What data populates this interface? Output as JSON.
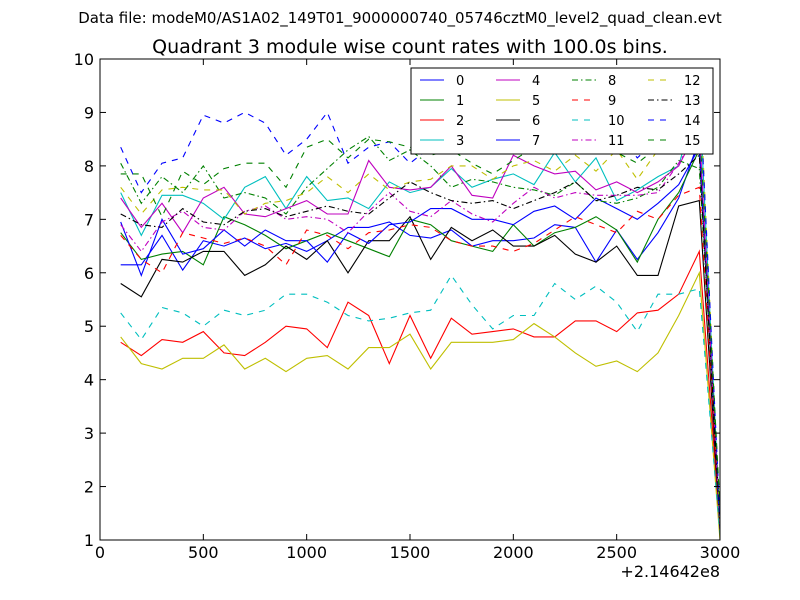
{
  "chart_data": {
    "type": "line",
    "subtitle": "Data file: modeM0/AS1A02_149T01_9000000740_05746cztM0_level2_quad_clean.evt",
    "title": "Quadrant 3 module wise count rates with 100.0s bins.",
    "xlabel": "",
    "ylabel": "",
    "x_offset_label": "+2.14642e8",
    "xlim": [
      0,
      3000
    ],
    "ylim": [
      1,
      10
    ],
    "xticks": [
      "0",
      "500",
      "1000",
      "1500",
      "2000",
      "2500",
      "3000"
    ],
    "yticks": [
      "1",
      "2",
      "3",
      "4",
      "5",
      "6",
      "7",
      "8",
      "9",
      "10"
    ],
    "grid": false,
    "legend_position": "top-right",
    "x": [
      100,
      200,
      300,
      400,
      500,
      600,
      700,
      800,
      900,
      1000,
      1100,
      1200,
      1300,
      1400,
      1500,
      1600,
      1700,
      1800,
      1900,
      2000,
      2100,
      2200,
      2300,
      2400,
      2500,
      2600,
      2700,
      2800,
      2900,
      3000
    ],
    "series": [
      {
        "name": "0",
        "color": "#0000ff",
        "dash": "solid",
        "values": [
          6.15,
          6.15,
          6.7,
          6.05,
          6.6,
          6.5,
          6.65,
          6.45,
          6.55,
          6.4,
          6.6,
          6.85,
          6.85,
          6.95,
          6.7,
          6.65,
          6.8,
          6.5,
          6.6,
          6.6,
          6.65,
          6.9,
          6.85,
          6.2,
          6.8,
          6.25,
          6.75,
          7.4,
          8.5,
          1.2
        ]
      },
      {
        "name": "1",
        "color": "#008000",
        "dash": "solid",
        "values": [
          6.75,
          6.25,
          6.35,
          6.4,
          6.15,
          7.05,
          6.9,
          6.7,
          6.45,
          6.6,
          6.75,
          6.6,
          6.45,
          6.3,
          7.0,
          6.9,
          6.6,
          6.5,
          6.4,
          6.9,
          6.5,
          6.75,
          6.85,
          7.05,
          6.8,
          6.2,
          7.0,
          7.5,
          8.3,
          1.3
        ]
      },
      {
        "name": "2",
        "color": "#ff0000",
        "dash": "solid",
        "values": [
          4.7,
          4.45,
          4.75,
          4.7,
          4.9,
          4.5,
          4.45,
          4.7,
          5.0,
          4.95,
          4.6,
          5.45,
          5.2,
          4.3,
          5.2,
          4.4,
          5.15,
          4.85,
          4.9,
          4.95,
          4.8,
          4.8,
          5.1,
          5.1,
          4.9,
          5.25,
          5.3,
          5.6,
          6.4,
          1.2
        ]
      },
      {
        "name": "3",
        "color": "#00bfbf",
        "dash": "solid",
        "values": [
          7.5,
          6.7,
          7.45,
          7.45,
          7.3,
          7.0,
          7.6,
          7.8,
          7.2,
          7.8,
          7.35,
          7.4,
          7.2,
          7.7,
          7.5,
          7.6,
          7.95,
          7.6,
          7.75,
          7.85,
          7.65,
          8.25,
          7.7,
          8.15,
          7.35,
          7.55,
          7.8,
          8.0,
          9.4,
          1.3
        ]
      },
      {
        "name": "4",
        "color": "#bf00bf",
        "dash": "solid",
        "values": [
          7.4,
          6.85,
          7.3,
          6.75,
          7.4,
          7.6,
          7.1,
          7.05,
          7.2,
          7.35,
          7.1,
          7.1,
          8.1,
          7.6,
          7.55,
          7.6,
          8.0,
          7.45,
          7.4,
          8.2,
          8.0,
          7.85,
          7.9,
          7.55,
          7.7,
          7.5,
          7.7,
          8.0,
          8.75,
          1.2
        ]
      },
      {
        "name": "5",
        "color": "#bfbf00",
        "dash": "solid",
        "values": [
          4.8,
          4.3,
          4.2,
          4.4,
          4.4,
          4.65,
          4.2,
          4.4,
          4.15,
          4.4,
          4.45,
          4.2,
          4.6,
          4.6,
          4.85,
          4.2,
          4.7,
          4.7,
          4.7,
          4.75,
          5.05,
          4.8,
          4.5,
          4.25,
          4.35,
          4.15,
          4.5,
          5.2,
          6.0,
          1.0
        ]
      },
      {
        "name": "6",
        "color": "#000000",
        "dash": "solid",
        "values": [
          5.8,
          5.55,
          6.25,
          6.2,
          6.4,
          6.4,
          5.95,
          6.15,
          6.5,
          6.25,
          6.6,
          6.0,
          6.6,
          6.6,
          7.05,
          6.25,
          6.85,
          6.6,
          6.8,
          6.5,
          6.5,
          6.7,
          6.35,
          6.2,
          6.5,
          5.95,
          5.95,
          7.25,
          7.35,
          1.2
        ]
      },
      {
        "name": "7",
        "color": "#0000ff",
        "dash": "solid",
        "values": [
          6.95,
          5.95,
          7.0,
          6.35,
          6.45,
          6.8,
          6.5,
          6.8,
          6.6,
          6.6,
          6.2,
          6.75,
          6.55,
          6.9,
          6.95,
          7.2,
          7.2,
          7.0,
          7.0,
          6.9,
          7.15,
          7.25,
          7.0,
          7.4,
          7.2,
          7.0,
          7.3,
          7.65,
          8.35,
          1.2
        ]
      },
      {
        "name": "8",
        "color": "#008000",
        "dash": "dashdot",
        "values": [
          8.05,
          7.3,
          7.8,
          7.5,
          8.0,
          7.4,
          7.5,
          7.4,
          7.1,
          7.6,
          7.95,
          8.3,
          8.55,
          8.1,
          8.3,
          8.0,
          7.6,
          7.75,
          7.7,
          7.6,
          7.55,
          7.45,
          7.7,
          7.35,
          7.3,
          7.4,
          7.6,
          8.1,
          7.95,
          1.5
        ]
      },
      {
        "name": "9",
        "color": "#ff0000",
        "dash": "dash",
        "values": [
          6.7,
          6.25,
          6.0,
          6.75,
          6.65,
          6.55,
          6.65,
          6.5,
          6.15,
          6.8,
          6.7,
          6.45,
          6.75,
          6.8,
          6.9,
          6.85,
          6.6,
          6.5,
          6.5,
          6.4,
          6.55,
          6.8,
          7.05,
          6.9,
          6.75,
          7.15,
          7.0,
          7.45,
          7.6,
          1.3
        ]
      },
      {
        "name": "10",
        "color": "#00bfbf",
        "dash": "dash",
        "values": [
          5.25,
          4.75,
          5.35,
          5.25,
          5.0,
          5.3,
          5.2,
          5.3,
          5.6,
          5.6,
          5.45,
          5.2,
          5.1,
          5.15,
          5.25,
          5.3,
          5.95,
          5.4,
          4.95,
          5.2,
          5.2,
          5.8,
          5.5,
          5.75,
          5.45,
          4.9,
          5.6,
          5.6,
          5.7,
          1.1
        ]
      },
      {
        "name": "11",
        "color": "#bf00bf",
        "dash": "dashdot",
        "values": [
          6.9,
          6.4,
          6.95,
          7.15,
          6.85,
          6.8,
          7.15,
          7.25,
          7.0,
          7.05,
          7.0,
          6.75,
          7.15,
          7.5,
          7.15,
          7.05,
          7.35,
          7.1,
          6.95,
          7.3,
          7.6,
          7.4,
          7.5,
          7.45,
          7.45,
          7.45,
          7.5,
          8.05,
          8.7,
          1.2
        ]
      },
      {
        "name": "12",
        "color": "#bfbf00",
        "dash": "dash",
        "values": [
          7.6,
          7.1,
          7.55,
          7.6,
          7.55,
          7.55,
          7.1,
          7.3,
          7.35,
          7.5,
          7.8,
          7.5,
          7.85,
          7.55,
          7.7,
          7.75,
          8.0,
          8.0,
          7.75,
          8.0,
          8.1,
          7.9,
          8.2,
          7.9,
          8.3,
          7.75,
          8.3,
          8.5,
          9.7,
          1.3
        ]
      },
      {
        "name": "13",
        "color": "#000000",
        "dash": "dashdot",
        "values": [
          7.1,
          6.9,
          6.85,
          7.2,
          6.95,
          6.9,
          7.15,
          7.2,
          7.05,
          7.15,
          7.25,
          7.15,
          7.1,
          7.4,
          7.7,
          7.5,
          7.35,
          7.3,
          7.35,
          7.2,
          7.35,
          7.5,
          7.7,
          7.35,
          7.45,
          7.6,
          7.55,
          7.85,
          8.2,
          1.3
        ]
      },
      {
        "name": "14",
        "color": "#0000ff",
        "dash": "dash",
        "values": [
          8.35,
          7.5,
          8.05,
          8.15,
          8.95,
          8.8,
          9.0,
          8.8,
          8.2,
          8.5,
          9.0,
          8.05,
          8.35,
          8.45,
          8.05,
          8.35,
          8.5,
          8.5,
          8.55,
          9.15,
          8.75,
          8.55,
          8.4,
          8.5,
          8.65,
          8.15,
          8.5,
          9.1,
          9.6,
          1.4
        ]
      },
      {
        "name": "15",
        "color": "#008000",
        "dash": "dash",
        "values": [
          7.85,
          7.85,
          7.05,
          7.9,
          7.65,
          7.95,
          8.05,
          8.05,
          7.6,
          8.35,
          8.5,
          8.15,
          8.5,
          8.45,
          8.35,
          8.2,
          8.3,
          8.05,
          7.85,
          8.1,
          8.35,
          8.55,
          8.5,
          8.65,
          8.25,
          8.05,
          8.35,
          8.45,
          8.85,
          1.6
        ]
      }
    ]
  }
}
